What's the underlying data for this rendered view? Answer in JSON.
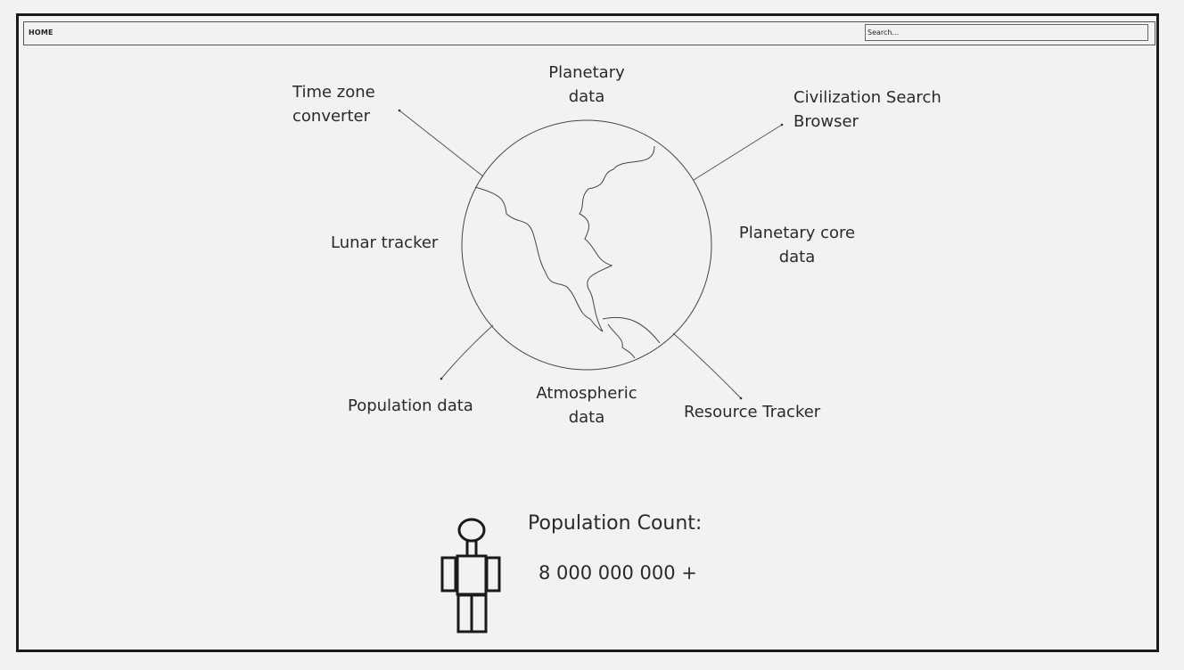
{
  "nav": {
    "home_label": "HOME",
    "search_placeholder": "Search..."
  },
  "menu": {
    "planetary_data": [
      "Planetary",
      "data"
    ],
    "time_zone_converter": [
      "Time zone",
      "converter"
    ],
    "civilization_search_browser": [
      "Civilization Search",
      "Browser"
    ],
    "lunar_tracker": "Lunar tracker",
    "planetary_core_data": [
      "Planetary core",
      "data"
    ],
    "population_data": "Population data",
    "atmospheric_data": [
      "Atmospheric",
      "data"
    ],
    "resource_tracker": "Resource Tracker"
  },
  "icons": {
    "globe": "globe-icon",
    "person": "person-icon"
  },
  "population": {
    "title": "Population Count:",
    "value": "8 000 000 000 +"
  }
}
